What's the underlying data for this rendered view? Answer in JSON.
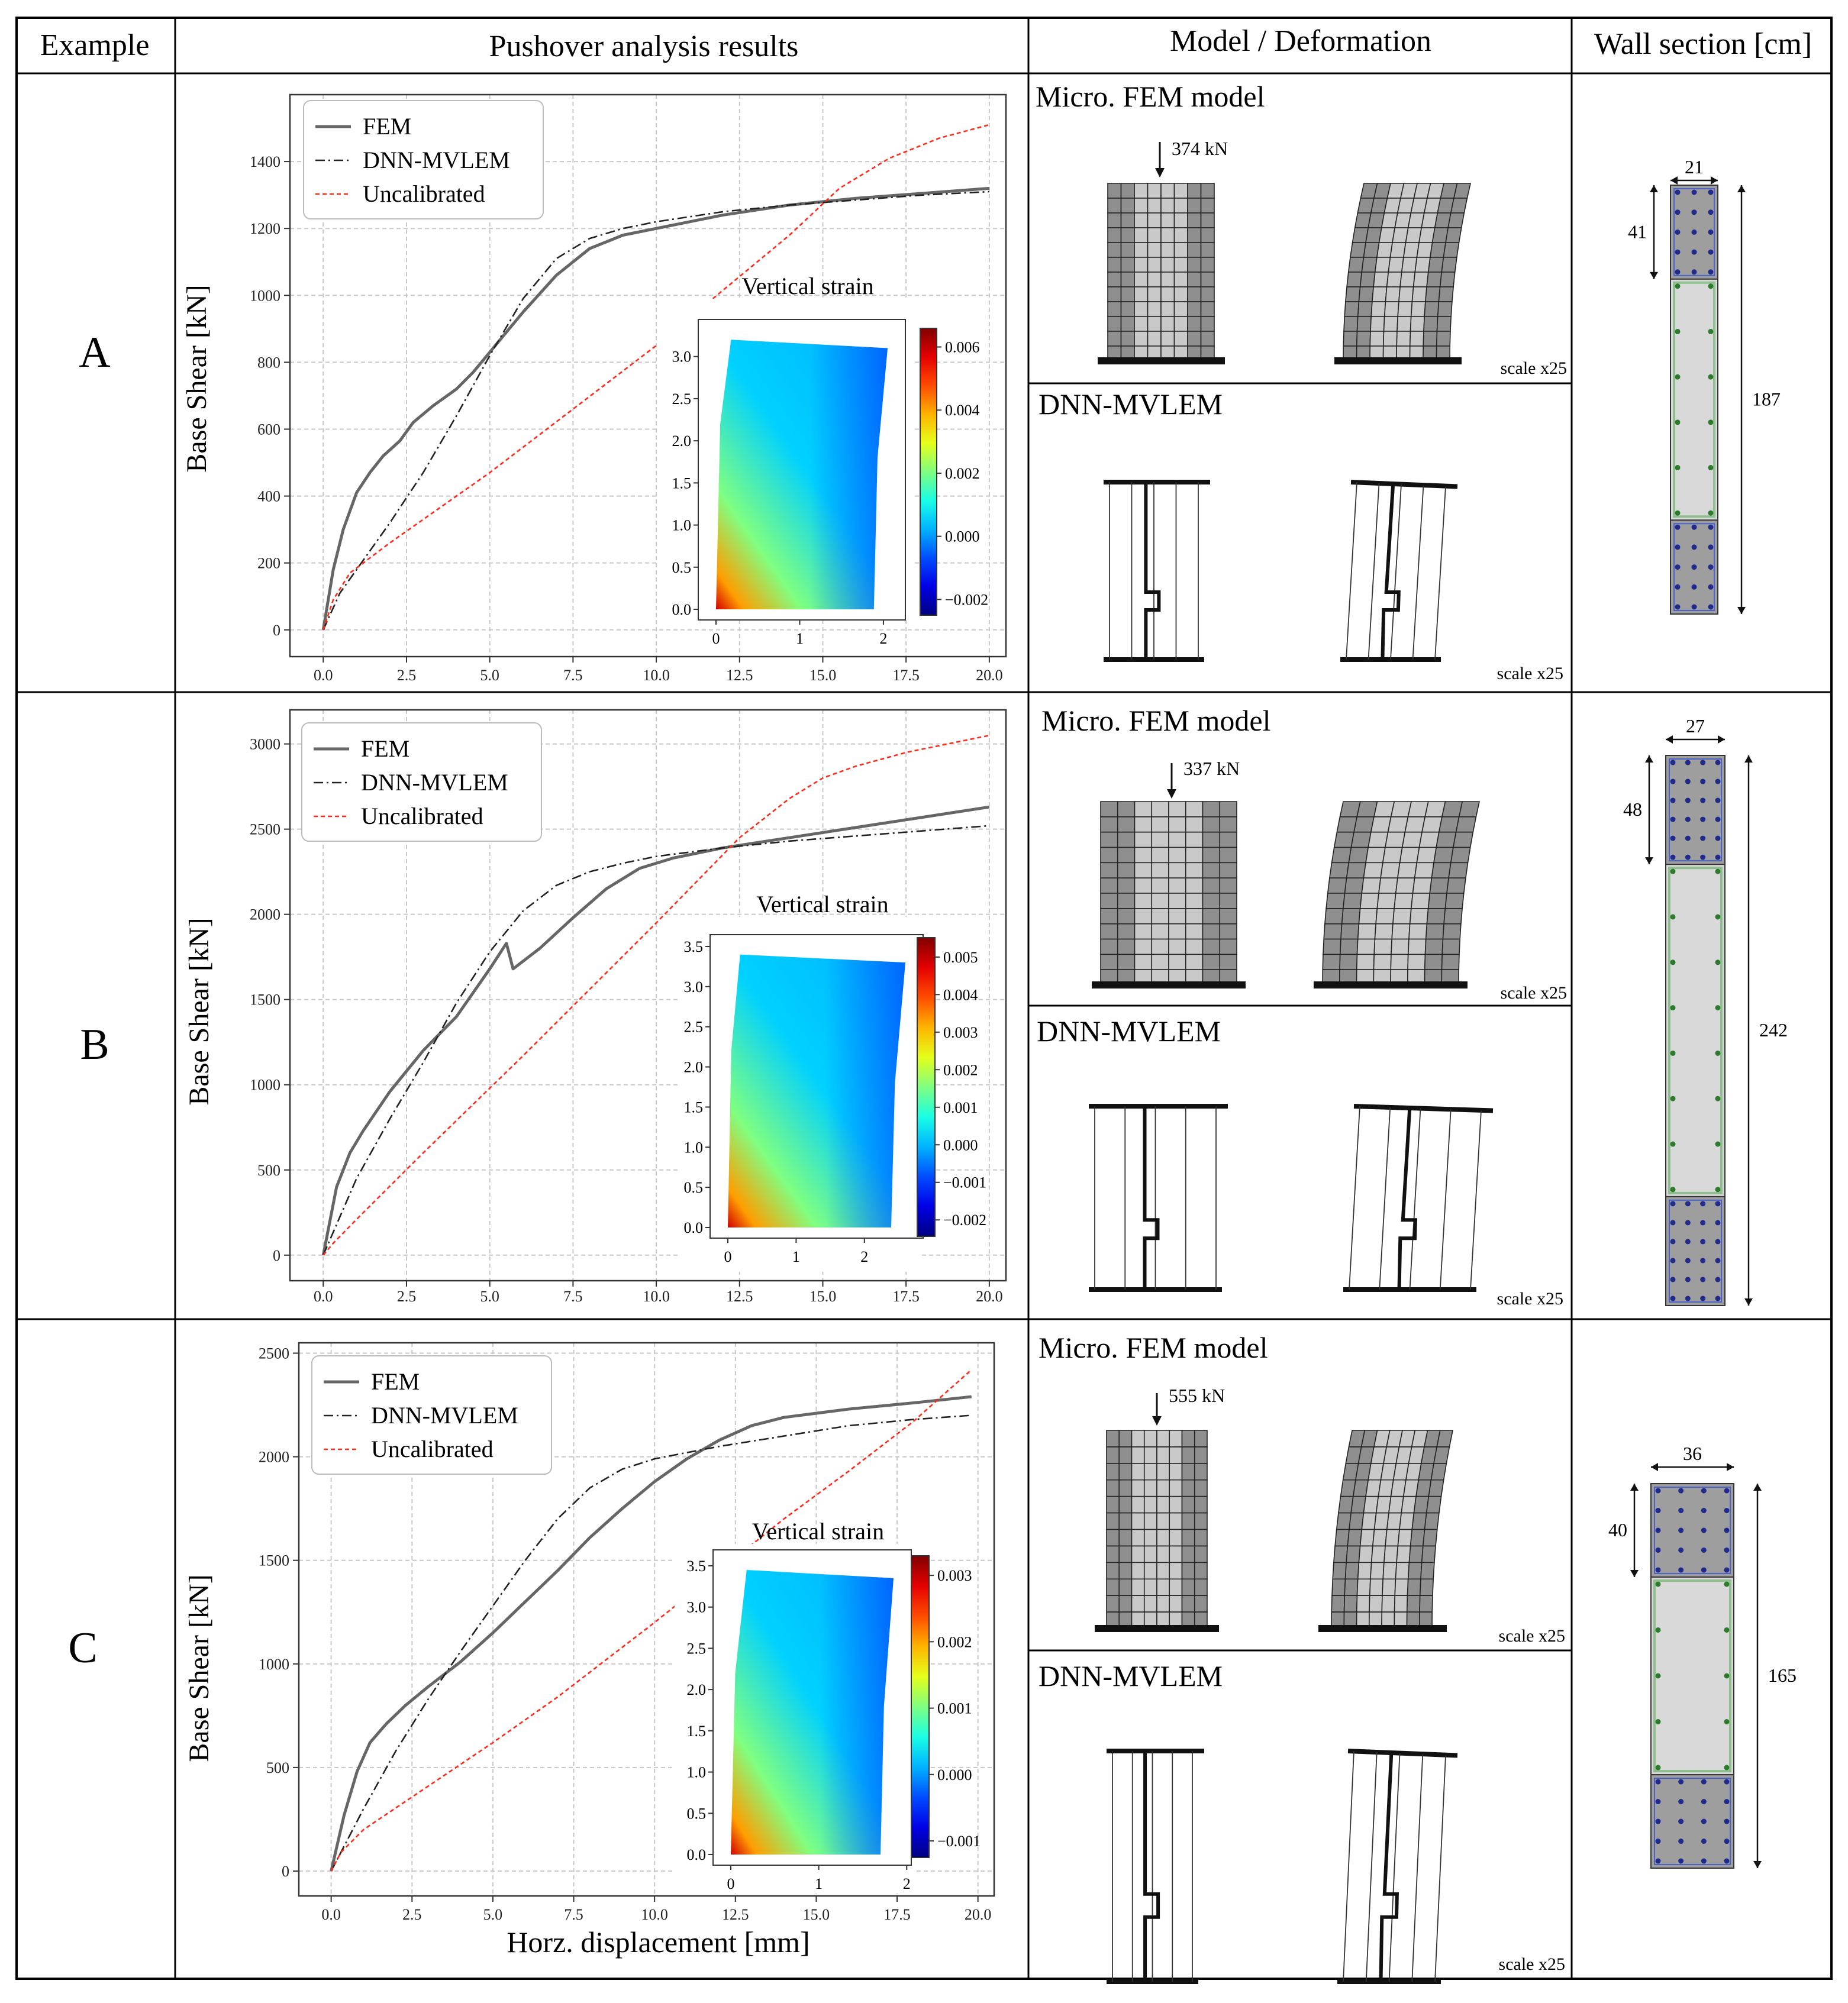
{
  "header": {
    "example": "Example",
    "pushover": "Pushover analysis results",
    "model": "Model / Deformation",
    "section": "Wall section [cm]"
  },
  "colors": {
    "fem": "#666666",
    "dnn": "#222222",
    "uncal": "#ff2a1a",
    "grid": "#c8c8c8",
    "concrete_light": "#d9d9d9",
    "concrete_dark": "#9e9e9e",
    "mesh_light": "#c9c9c9",
    "mesh_dark": "#8f8f8f",
    "boundary_rebar": "#1f2a8c",
    "web_rebar": "#2d7a2d",
    "stirrup": "#8fbf8f"
  },
  "rows": [
    {
      "label": "A",
      "chart_data": {
        "type": "line",
        "xlabel": "",
        "ylabel": "Base Shear [kN]",
        "xlim": [
          -1,
          20.5
        ],
        "ylim": [
          -80,
          1600
        ],
        "xticks": [
          0.0,
          2.5,
          5.0,
          7.5,
          10.0,
          12.5,
          15.0,
          17.5,
          20.0
        ],
        "yticks": [
          0,
          200,
          400,
          600,
          800,
          1000,
          1200,
          1400
        ],
        "grid": true,
        "legend_position": "top-left",
        "series": [
          {
            "name": "FEM",
            "style": "solid",
            "x": [
              0,
              0.3,
              0.6,
              1.0,
              1.4,
              1.8,
              2.3,
              2.7,
              3.3,
              4.0,
              4.5,
              5.0,
              6.0,
              7.0,
              8.0,
              9.0,
              10.0,
              12.0,
              14.0,
              16.0,
              18.0,
              20.0
            ],
            "y": [
              0,
              180,
              300,
              410,
              470,
              520,
              565,
              620,
              670,
              720,
              770,
              830,
              950,
              1060,
              1140,
              1180,
              1200,
              1240,
              1270,
              1290,
              1305,
              1320
            ]
          },
          {
            "name": "DNN-MVLEM",
            "style": "dashdot",
            "x": [
              0,
              0.5,
              1.0,
              2.0,
              3.0,
              4.0,
              5.0,
              6.0,
              7.0,
              8.0,
              9.0,
              10.0,
              12.0,
              14.0,
              16.0,
              18.0,
              20.0
            ],
            "y": [
              0,
              110,
              180,
              320,
              470,
              640,
              820,
              990,
              1110,
              1170,
              1200,
              1220,
              1250,
              1270,
              1285,
              1300,
              1310
            ]
          },
          {
            "name": "Uncalibrated",
            "style": "dashed",
            "x": [
              0,
              0.3,
              0.8,
              2.0,
              5.0,
              10.0,
              14.0,
              15.5,
              17.0,
              18.5,
              20.0
            ],
            "y": [
              0,
              90,
              170,
              260,
              470,
              850,
              1180,
              1320,
              1410,
              1470,
              1510
            ]
          }
        ],
        "inset": {
          "title": "Vertical strain",
          "xticks": [
            "0",
            "1",
            "2"
          ],
          "yticks": [
            "0.0",
            "0.5",
            "1.0",
            "1.5",
            "2.0",
            "2.5",
            "3.0"
          ],
          "colorbar_ticks": [
            "0.006",
            "0.004",
            "0.002",
            "0.000",
            "−0.002"
          ]
        }
      },
      "model": {
        "fem_title": "Micro. FEM model",
        "load": "374 kN",
        "scale_fem": "scale x25",
        "dnn_title": "DNN-MVLEM",
        "scale_dnn": "scale x25"
      },
      "section": {
        "width": "21",
        "boundary": "41",
        "length": "187"
      }
    },
    {
      "label": "B",
      "chart_data": {
        "type": "line",
        "xlabel": "",
        "ylabel": "Base Shear [kN]",
        "xlim": [
          -1,
          20.5
        ],
        "ylim": [
          -150,
          3200
        ],
        "xticks": [
          0.0,
          2.5,
          5.0,
          7.5,
          10.0,
          12.5,
          15.0,
          17.5,
          20.0
        ],
        "yticks": [
          0,
          500,
          1000,
          1500,
          2000,
          2500,
          3000
        ],
        "grid": true,
        "legend_position": "top-left",
        "series": [
          {
            "name": "FEM",
            "style": "solid",
            "x": [
              0,
              0.4,
              0.8,
              1.2,
              2.0,
              3.0,
              4.0,
              5.0,
              5.5,
              5.7,
              6.5,
              7.5,
              8.5,
              9.5,
              10.5,
              12.0,
              14.0,
              16.0,
              18.0,
              20.0
            ],
            "y": [
              0,
              400,
              600,
              730,
              960,
              1200,
              1400,
              1680,
              1830,
              1680,
              1800,
              1980,
              2150,
              2270,
              2330,
              2390,
              2450,
              2510,
              2570,
              2630
            ]
          },
          {
            "name": "DNN-MVLEM",
            "style": "dashdot",
            "x": [
              0,
              1.0,
              2.0,
              3.0,
              4.0,
              5.0,
              6.0,
              7.0,
              8.0,
              9.0,
              10.0,
              12.0,
              14.0,
              16.0,
              18.0,
              20.0
            ],
            "y": [
              0,
              450,
              800,
              1130,
              1480,
              1780,
              2020,
              2170,
              2250,
              2300,
              2340,
              2390,
              2430,
              2460,
              2490,
              2520
            ]
          },
          {
            "name": "Uncalibrated",
            "style": "dashed",
            "x": [
              0,
              0.3,
              1.0,
              3.0,
              6.0,
              10.0,
              12.5,
              14.0,
              15.0,
              16.0,
              17.5,
              20.0
            ],
            "y": [
              0,
              70,
              210,
              600,
              1170,
              1950,
              2450,
              2680,
              2800,
              2870,
              2950,
              3050
            ]
          }
        ],
        "inset": {
          "title": "Vertical strain",
          "xticks": [
            "0",
            "1",
            "2"
          ],
          "yticks": [
            "0.0",
            "0.5",
            "1.0",
            "1.5",
            "2.0",
            "2.5",
            "3.0",
            "3.5"
          ],
          "colorbar_ticks": [
            "0.005",
            "0.004",
            "0.003",
            "0.002",
            "0.001",
            "0.000",
            "−0.001",
            "−0.002"
          ]
        }
      },
      "model": {
        "fem_title": "Micro. FEM model",
        "load": "337 kN",
        "scale_fem": "scale x25",
        "dnn_title": "DNN-MVLEM",
        "scale_dnn": "scale x25"
      },
      "section": {
        "width": "27",
        "boundary": "48",
        "length": "242"
      }
    },
    {
      "label": "C",
      "chart_data": {
        "type": "line",
        "xlabel": "Horz. displacement [mm]",
        "ylabel": "Base Shear [kN]",
        "xlim": [
          -1,
          20.5
        ],
        "ylim": [
          -120,
          2550
        ],
        "xticks": [
          0.0,
          2.5,
          5.0,
          7.5,
          10.0,
          12.5,
          15.0,
          17.5,
          20.0
        ],
        "yticks": [
          0,
          500,
          1000,
          1500,
          2000,
          2500
        ],
        "grid": true,
        "legend_position": "top-left",
        "series": [
          {
            "name": "FEM",
            "style": "solid",
            "x": [
              0,
              0.4,
              0.8,
              1.2,
              1.7,
              2.3,
              3.0,
              4.0,
              5.0,
              6.0,
              7.0,
              8.0,
              9.0,
              10.0,
              11.0,
              12.0,
              13.0,
              14.0,
              16.0,
              18.0,
              19.8
            ],
            "y": [
              0,
              270,
              480,
              620,
              710,
              800,
              890,
              1010,
              1150,
              1300,
              1450,
              1610,
              1750,
              1880,
              1990,
              2080,
              2150,
              2190,
              2230,
              2260,
              2290
            ]
          },
          {
            "name": "DNN-MVLEM",
            "style": "dashdot",
            "x": [
              0,
              1.0,
              2.0,
              3.0,
              4.0,
              5.0,
              6.0,
              7.0,
              8.0,
              9.0,
              10.0,
              11.0,
              12.0,
              14.0,
              16.0,
              18.0,
              19.8
            ],
            "y": [
              0,
              300,
              580,
              830,
              1060,
              1280,
              1500,
              1700,
              1850,
              1940,
              1990,
              2020,
              2050,
              2100,
              2150,
              2180,
              2200
            ]
          },
          {
            "name": "Uncalibrated",
            "style": "dashed",
            "x": [
              0,
              0.3,
              1.0,
              3.0,
              5.0,
              7.0,
              10.0,
              12.0,
              14.0,
              16.0,
              18.0,
              19.8
            ],
            "y": [
              0,
              90,
              200,
              410,
              620,
              840,
              1200,
              1450,
              1700,
              1930,
              2170,
              2420
            ]
          }
        ],
        "inset": {
          "title": "Vertical strain",
          "xticks": [
            "0",
            "1",
            "2"
          ],
          "yticks": [
            "0.0",
            "0.5",
            "1.0",
            "1.5",
            "2.0",
            "2.5",
            "3.0",
            "3.5"
          ],
          "colorbar_ticks": [
            "0.003",
            "0.002",
            "0.001",
            "0.000",
            "−0.001"
          ]
        }
      },
      "model": {
        "fem_title": "Micro. FEM model",
        "load": "555 kN",
        "scale_fem": "scale x25",
        "dnn_title": "DNN-MVLEM",
        "scale_dnn": "scale x25"
      },
      "section": {
        "width": "36",
        "boundary": "40",
        "length": "165"
      }
    }
  ]
}
